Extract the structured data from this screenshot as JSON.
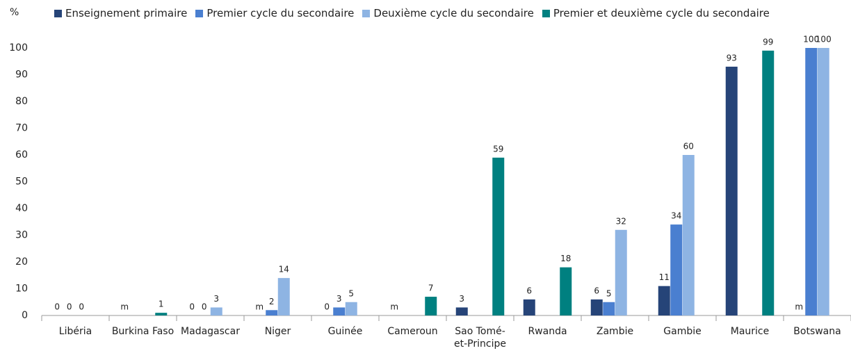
{
  "chart_data": {
    "type": "bar",
    "y_label": "%",
    "categories": [
      "Libéria",
      "Burkina Faso",
      "Madagascar",
      "Niger",
      "Guinée",
      "Cameroun",
      "Sao Tomé-et-Principe",
      "Rwanda",
      "Zambie",
      "Gambie",
      "Maurice",
      "Botswana"
    ],
    "series": [
      {
        "name": "Enseignement primaire",
        "color": "#264478",
        "values": [
          0,
          null,
          0,
          null,
          0,
          null,
          3,
          6,
          6,
          11,
          93,
          null
        ],
        "value_labels": [
          "0",
          "m",
          "0",
          "m",
          "0",
          "m",
          "3",
          "6",
          "6",
          "11",
          "93",
          "m"
        ]
      },
      {
        "name": "Premier cycle du secondaire",
        "color": "#4a7fd0",
        "values": [
          0,
          null,
          0,
          2,
          3,
          null,
          null,
          null,
          5,
          34,
          null,
          100
        ]
      },
      {
        "name": "Deuxième cycle du secondaire",
        "color": "#8eb4e3",
        "values": [
          0,
          null,
          3,
          14,
          5,
          null,
          null,
          null,
          32,
          60,
          null,
          100
        ]
      },
      {
        "name": "Premier et deuxième cycle du secondaire",
        "color": "#008080",
        "values": [
          null,
          1,
          null,
          null,
          null,
          7,
          59,
          18,
          null,
          null,
          99,
          null
        ]
      }
    ],
    "ylim": [
      0,
      100
    ],
    "yticks": [
      0,
      10,
      20,
      30,
      40,
      50,
      60,
      70,
      80,
      90,
      100
    ],
    "grid": false
  }
}
